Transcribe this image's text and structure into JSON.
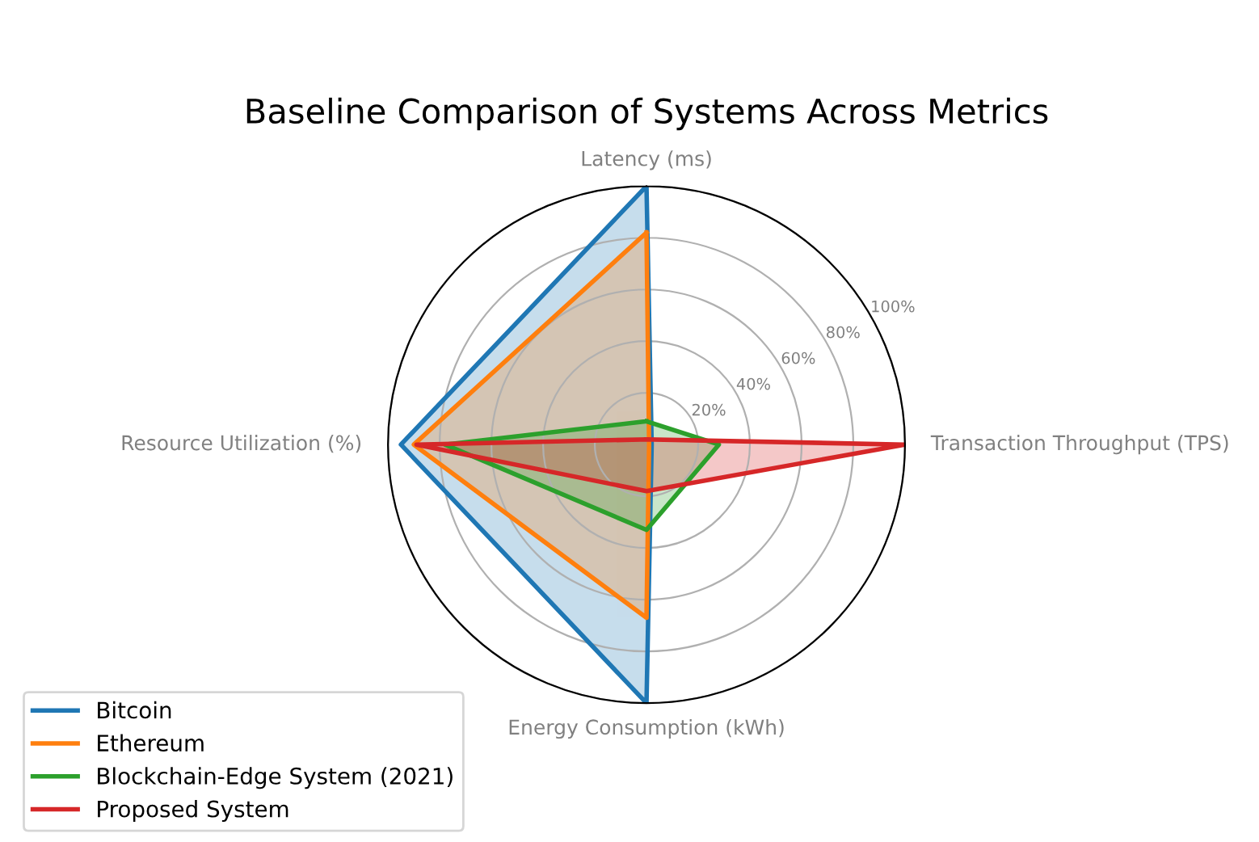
{
  "chart_data": {
    "type": "radar",
    "title": "Baseline Comparison of Systems Across Metrics",
    "categories": [
      "Latency (ms)",
      "Transaction Throughput (TPS)",
      "Energy Consumption (kWh)",
      "Resource Utilization (%)"
    ],
    "series": [
      {
        "name": "Bitcoin",
        "color": "#1f77b4",
        "values": [
          100,
          2,
          100,
          95
        ]
      },
      {
        "name": "Ethereum",
        "color": "#ff7f0e",
        "values": [
          82,
          1,
          67,
          90
        ]
      },
      {
        "name": "Blockchain-Edge System (2021)",
        "color": "#2ca02c",
        "values": [
          9,
          28,
          33,
          78
        ]
      },
      {
        "name": "Proposed System",
        "color": "#d62728",
        "values": [
          2,
          100,
          18,
          89
        ]
      }
    ],
    "ylim": [
      0,
      100
    ],
    "yticks": [
      {
        "value": 20,
        "label": "20%"
      },
      {
        "value": 40,
        "label": "40%"
      },
      {
        "value": 60,
        "label": "60%"
      },
      {
        "value": 80,
        "label": "80%"
      },
      {
        "value": 100,
        "label": "100%"
      }
    ],
    "grid": "y",
    "legend": "bottom left",
    "marker": "none",
    "line_style": "solid"
  }
}
